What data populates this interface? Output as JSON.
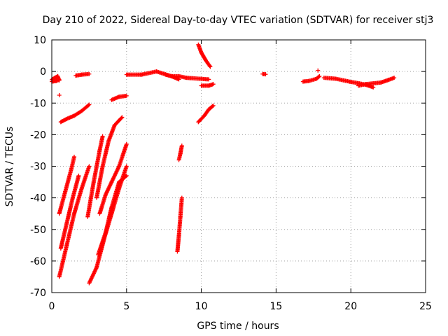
{
  "chart_data": {
    "type": "scatter",
    "title": "Day 210 of 2022, Sidereal Day-to-day VTEC variation (SDTVAR) for receiver stj3",
    "xlabel": "GPS time / hours",
    "ylabel": "SDTVAR / TECUs",
    "xlim": [
      0,
      25
    ],
    "ylim": [
      -70,
      10
    ],
    "xticks": [
      0,
      5,
      10,
      15,
      20,
      25
    ],
    "yticks": [
      -70,
      -60,
      -50,
      -40,
      -30,
      -20,
      -10,
      0,
      10
    ],
    "xtick_labels": [
      "0",
      "5",
      "10",
      "15",
      "20",
      "25"
    ],
    "ytick_labels": [
      "-70",
      "-60",
      "-50",
      "-40",
      "-30",
      "-20",
      "-10",
      "0",
      "10"
    ],
    "grid": true,
    "grid_style": "dotted",
    "marker": "+",
    "color": "#ff0000",
    "segments": [
      [
        [
          0.0,
          -2.6
        ],
        [
          0.2,
          -2.0
        ],
        [
          0.4,
          -1.5
        ],
        [
          0.5,
          -2.8
        ]
      ],
      [
        [
          0.0,
          -3.2
        ],
        [
          0.3,
          -3.0
        ],
        [
          0.5,
          -2.6
        ]
      ],
      [
        [
          0.5,
          -7.5
        ]
      ],
      [
        [
          0.6,
          -16.0
        ],
        [
          1.0,
          -15.0
        ],
        [
          1.5,
          -14.0
        ],
        [
          2.0,
          -12.5
        ],
        [
          2.5,
          -10.5
        ]
      ],
      [
        [
          1.6,
          -1.3
        ],
        [
          2.0,
          -1.0
        ],
        [
          2.5,
          -0.8
        ]
      ],
      [
        [
          0.5,
          -45.0
        ],
        [
          0.9,
          -38.0
        ],
        [
          1.3,
          -31.0
        ],
        [
          1.5,
          -27.0
        ]
      ],
      [
        [
          0.6,
          -56.0
        ],
        [
          1.0,
          -48.0
        ],
        [
          1.4,
          -40.0
        ],
        [
          1.8,
          -33.0
        ]
      ],
      [
        [
          0.5,
          -65.0
        ],
        [
          1.0,
          -55.0
        ],
        [
          1.5,
          -45.0
        ],
        [
          2.0,
          -37.0
        ],
        [
          2.5,
          -30.0
        ]
      ],
      [
        [
          2.4,
          -46.0
        ],
        [
          2.8,
          -35.0
        ],
        [
          3.2,
          -25.0
        ],
        [
          3.4,
          -20.5
        ]
      ],
      [
        [
          2.5,
          -67.0
        ],
        [
          3.0,
          -62.0
        ],
        [
          3.5,
          -53.0
        ],
        [
          4.0,
          -45.0
        ],
        [
          4.5,
          -37.0
        ],
        [
          5.0,
          -30.0
        ]
      ],
      [
        [
          3.0,
          -40.0
        ],
        [
          3.4,
          -30.0
        ],
        [
          3.8,
          -22.0
        ],
        [
          4.2,
          -17.0
        ],
        [
          4.7,
          -14.5
        ]
      ],
      [
        [
          3.2,
          -45.0
        ],
        [
          3.6,
          -39.0
        ],
        [
          4.0,
          -35.0
        ],
        [
          4.5,
          -30.0
        ],
        [
          5.0,
          -23.0
        ]
      ],
      [
        [
          3.1,
          -58.0
        ],
        [
          3.6,
          -51.0
        ],
        [
          4.0,
          -43.0
        ],
        [
          4.5,
          -35.0
        ],
        [
          5.0,
          -33.0
        ]
      ],
      [
        [
          4.0,
          -9.0
        ],
        [
          4.5,
          -8.0
        ],
        [
          5.0,
          -7.7
        ]
      ],
      [
        [
          5.0,
          -1.0
        ],
        [
          6.0,
          -1.0
        ],
        [
          7.0,
          0.0
        ],
        [
          8.0,
          -1.5
        ],
        [
          8.5,
          -2.5
        ]
      ],
      [
        [
          7.6,
          -1.0
        ],
        [
          8.0,
          -1.5
        ],
        [
          8.5,
          -1.5
        ],
        [
          9.0,
          -2.0
        ],
        [
          10.5,
          -2.5
        ]
      ],
      [
        [
          8.5,
          -28.0
        ],
        [
          8.6,
          -26.0
        ],
        [
          8.7,
          -23.5
        ]
      ],
      [
        [
          8.4,
          -57.0
        ],
        [
          8.5,
          -52.0
        ],
        [
          8.6,
          -46.0
        ],
        [
          8.7,
          -40.0
        ]
      ],
      [
        [
          9.8,
          8.5
        ],
        [
          10.0,
          6.0
        ],
        [
          10.3,
          3.5
        ],
        [
          10.6,
          1.5
        ]
      ],
      [
        [
          10.0,
          -4.5
        ],
        [
          10.5,
          -4.5
        ],
        [
          10.8,
          -4.0
        ]
      ],
      [
        [
          9.8,
          -16.0
        ],
        [
          10.2,
          -14.0
        ],
        [
          10.5,
          -12.0
        ],
        [
          10.8,
          -10.8
        ]
      ],
      [
        [
          14.1,
          -0.8
        ],
        [
          14.3,
          -0.9
        ]
      ],
      [
        [
          16.8,
          -3.2
        ],
        [
          17.2,
          -3.0
        ],
        [
          17.7,
          -2.3
        ],
        [
          17.9,
          -1.5
        ]
      ],
      [
        [
          17.8,
          0.3
        ]
      ],
      [
        [
          18.2,
          -2.0
        ],
        [
          19.0,
          -2.3
        ],
        [
          20.0,
          -3.3
        ],
        [
          20.5,
          -3.7
        ],
        [
          21.0,
          -4.2
        ],
        [
          21.5,
          -5.0
        ]
      ],
      [
        [
          20.5,
          -4.5
        ],
        [
          21.0,
          -4.0
        ],
        [
          22.0,
          -3.5
        ],
        [
          22.5,
          -2.7
        ],
        [
          22.9,
          -2.0
        ]
      ]
    ]
  }
}
